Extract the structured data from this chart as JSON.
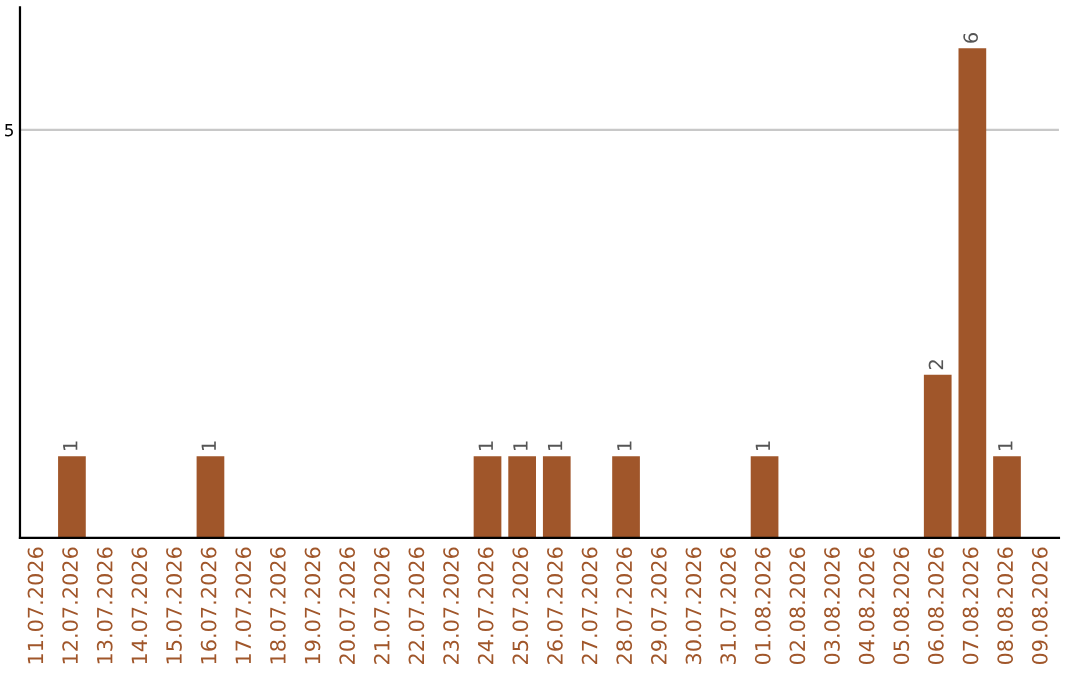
{
  "chart_data": {
    "type": "bar",
    "categories": [
      "11.07.2026",
      "12.07.2026",
      "13.07.2026",
      "14.07.2026",
      "15.07.2026",
      "16.07.2026",
      "17.07.2026",
      "18.07.2026",
      "19.07.2026",
      "20.07.2026",
      "21.07.2026",
      "22.07.2026",
      "23.07.2026",
      "24.07.2026",
      "25.07.2026",
      "26.07.2026",
      "27.07.2026",
      "28.07.2026",
      "29.07.2026",
      "30.07.2026",
      "31.07.2026",
      "01.08.2026",
      "02.08.2026",
      "03.08.2026",
      "04.08.2026",
      "05.08.2026",
      "06.08.2026",
      "07.08.2026",
      "08.08.2026",
      "09.08.2026"
    ],
    "values": [
      0,
      1,
      0,
      0,
      0,
      1,
      0,
      0,
      0,
      0,
      0,
      0,
      0,
      1,
      1,
      1,
      0,
      1,
      0,
      0,
      0,
      1,
      0,
      0,
      0,
      0,
      2,
      6,
      1,
      0
    ],
    "color": "#a0562a",
    "value_labels": [
      null,
      "1",
      null,
      null,
      null,
      "1",
      null,
      null,
      null,
      null,
      null,
      null,
      null,
      "1",
      "1",
      "1",
      null,
      "1",
      null,
      null,
      null,
      "1",
      null,
      null,
      null,
      null,
      "2",
      "6",
      "1",
      null
    ],
    "ylim": [
      0,
      6.5
    ],
    "yticks": [
      5
    ],
    "grid": "y"
  }
}
